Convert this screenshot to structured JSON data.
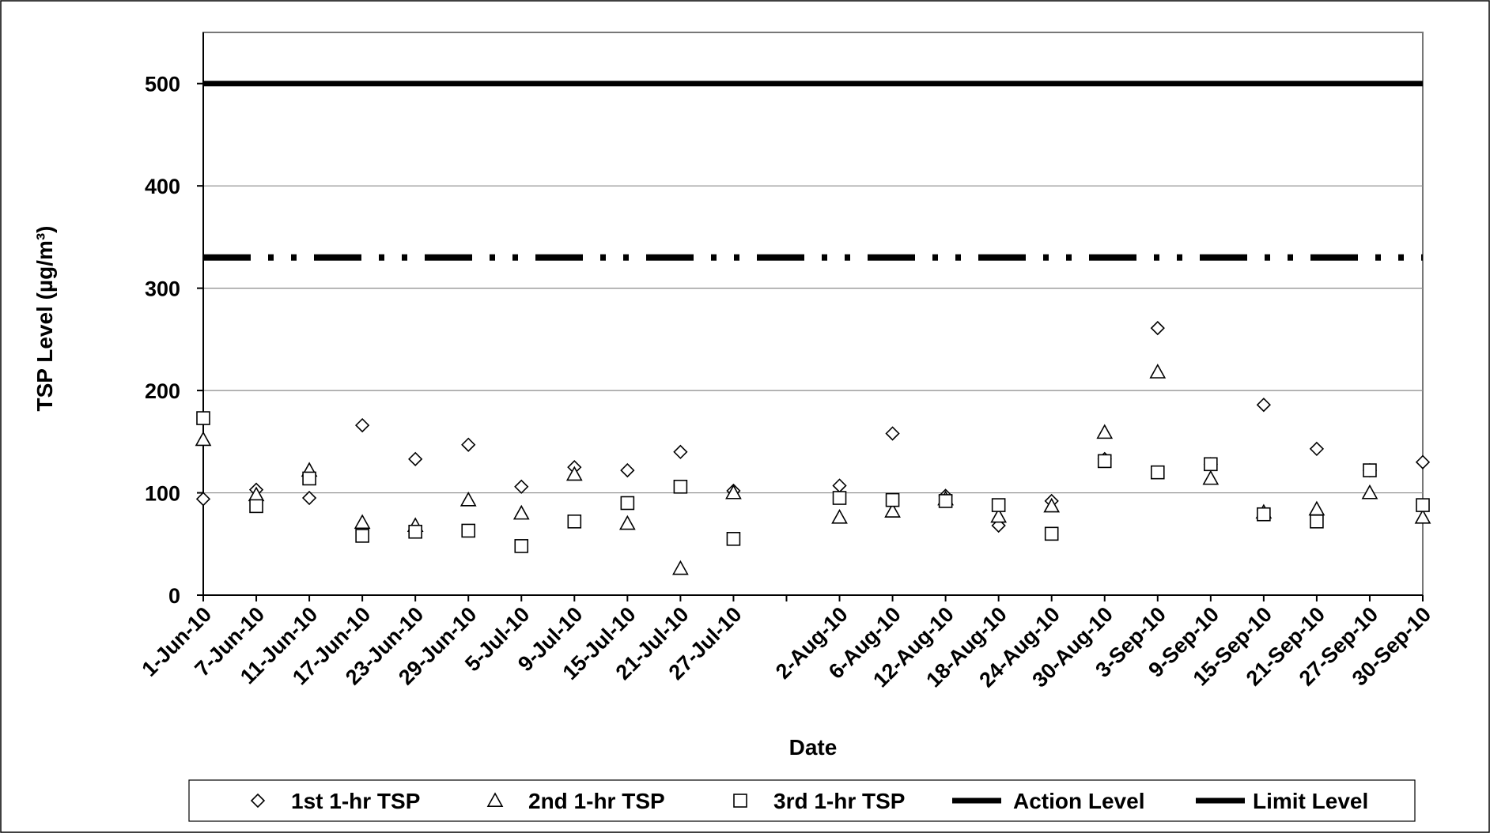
{
  "chart_data": {
    "type": "scatter",
    "title": "",
    "xlabel": "Date",
    "ylabel": "TSP Level  (µg/m³)",
    "ylim": [
      0,
      550
    ],
    "yticks": [
      0,
      100,
      200,
      300,
      400,
      500
    ],
    "grid": true,
    "legend_position": "bottom",
    "x_tick_labels": [
      "1-Jun-10",
      "7-Jun-10",
      "11-Jun-10",
      "17-Jun-10",
      "23-Jun-10",
      "29-Jun-10",
      "5-Jul-10",
      "9-Jul-10",
      "15-Jul-10",
      "21-Jul-10",
      "27-Jul-10",
      "2-Aug-10",
      "6-Aug-10",
      "12-Aug-10",
      "18-Aug-10",
      "24-Aug-10",
      "30-Aug-10",
      "3-Sep-10",
      "9-Sep-10",
      "15-Sep-10",
      "21-Sep-10",
      "27-Sep-10",
      "30-Sep-10"
    ],
    "x": [
      "1-Jun-10",
      "7-Jun-10",
      "11-Jun-10",
      "17-Jun-10",
      "23-Jun-10",
      "29-Jun-10",
      "5-Jul-10",
      "9-Jul-10",
      "15-Jul-10",
      "21-Jul-10",
      "27-Jul-10",
      "",
      "2-Aug-10",
      "6-Aug-10",
      "12-Aug-10",
      "18-Aug-10",
      "24-Aug-10",
      "30-Aug-10",
      "3-Sep-10",
      "9-Sep-10",
      "15-Sep-10",
      "21-Sep-10",
      "27-Sep-10",
      "30-Sep-10"
    ],
    "series": [
      {
        "name": "1st 1-hr TSP",
        "marker": "diamond",
        "values": [
          94,
          103,
          95,
          166,
          133,
          147,
          106,
          125,
          122,
          140,
          102,
          null,
          107,
          158,
          97,
          68,
          92,
          133,
          261,
          128,
          186,
          143,
          122,
          130
        ]
      },
      {
        "name": "2nd 1-hr TSP",
        "marker": "triangle",
        "values": [
          152,
          98,
          122,
          71,
          68,
          93,
          80,
          118,
          70,
          26,
          100,
          null,
          76,
          82,
          94,
          77,
          87,
          159,
          218,
          114,
          81,
          84,
          100,
          76
        ]
      },
      {
        "name": "3rd 1-hr TSP",
        "marker": "square",
        "values": [
          173,
          87,
          114,
          58,
          62,
          63,
          48,
          72,
          90,
          106,
          55,
          null,
          95,
          93,
          92,
          88,
          60,
          131,
          120,
          128,
          79,
          72,
          122,
          88
        ]
      }
    ],
    "reference_lines": [
      {
        "name": "Action Level",
        "value": 330,
        "style": "dash-dot-dot",
        "color": "#000000"
      },
      {
        "name": "Limit Level",
        "value": 500,
        "style": "solid",
        "color": "#000000"
      }
    ]
  }
}
